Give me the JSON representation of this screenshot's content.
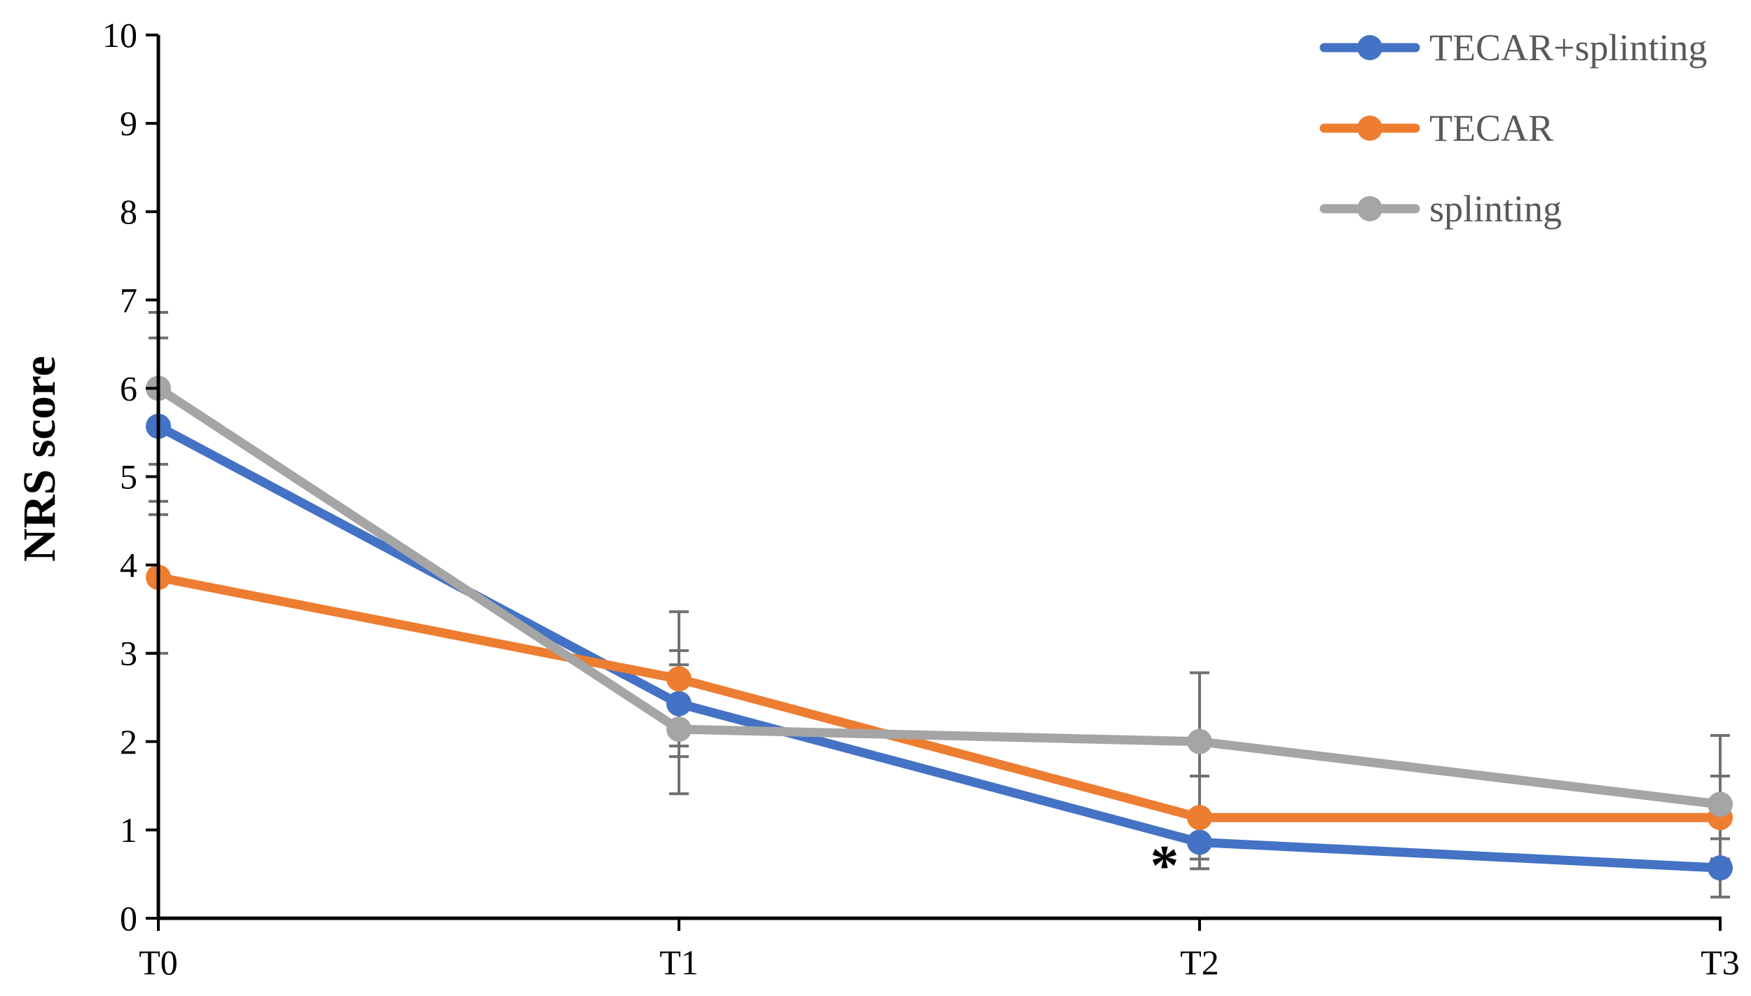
{
  "chart_data": {
    "type": "line",
    "title": "",
    "xlabel": "",
    "ylabel": "NRS score",
    "categories": [
      "T0",
      "T1",
      "T2",
      "T3"
    ],
    "ylim": [
      0,
      10
    ],
    "yticks": [
      0,
      1,
      2,
      3,
      4,
      5,
      6,
      7,
      8,
      9,
      10
    ],
    "grid": false,
    "legend_position": "top-right",
    "series": [
      {
        "name": "TECAR+splinting",
        "color": "#4472C4",
        "values": [
          5.57,
          2.43,
          0.86,
          0.57
        ],
        "error": [
          1.0,
          0.6,
          0.3,
          0.33
        ]
      },
      {
        "name": "TECAR",
        "color": "#ED7D31",
        "values": [
          3.86,
          2.71,
          1.14,
          1.14
        ],
        "error": [
          0.86,
          0.76,
          0.47,
          0.47
        ]
      },
      {
        "name": "splinting",
        "color": "#A5A5A5",
        "values": [
          6.0,
          2.14,
          2.0,
          1.29
        ],
        "error": [
          0.86,
          0.73,
          0.78,
          0.78
        ]
      }
    ],
    "annotations": [
      {
        "text": "*",
        "category": "T2",
        "series": "TECAR+splinting"
      }
    ]
  }
}
